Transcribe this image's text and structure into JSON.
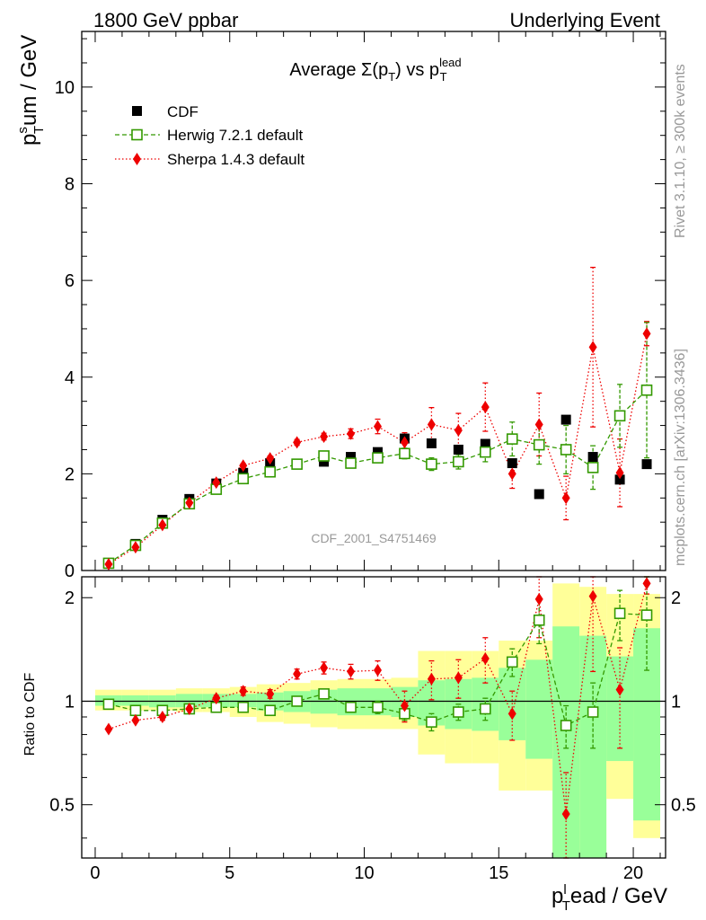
{
  "header": {
    "left": "1800 GeV ppbar",
    "right": "Underlying Event"
  },
  "side_labels": {
    "rivet": "Rivet 3.1.10, ≥ 300k events",
    "mcplots": "mcplots.cern.ch [arXiv:1306.3436]"
  },
  "watermark": "CDF_2001_S4751469",
  "colors": {
    "cdf": "#000000",
    "herwig": "#339900",
    "sherpa": "#ee0000",
    "band_yellow": "#ffff99",
    "band_green": "#99ff99"
  },
  "chart_data": [
    {
      "type": "scatter",
      "title_parts": {
        "base": "Average Σ(p",
        "sub1": "T",
        "mid": ") vs p",
        "sup": "lead",
        "sub2": "T"
      },
      "ylabel_parts": {
        "p": "p",
        "sup": "s",
        "sub": "T",
        "rest": "um / GeV"
      },
      "xlim": [
        -0.5,
        21.2
      ],
      "ylim": [
        0,
        11.15
      ],
      "yticks": [
        0,
        2,
        4,
        6,
        8,
        10
      ],
      "ytick_labels": [
        "0",
        "2",
        "4",
        "6",
        "8",
        "10"
      ],
      "legend_position": "top-left",
      "x": [
        0.5,
        1.5,
        2.5,
        3.5,
        4.5,
        5.5,
        6.5,
        7.5,
        8.5,
        9.5,
        10.5,
        11.5,
        12.5,
        13.5,
        14.5,
        15.5,
        16.5,
        17.5,
        18.5,
        19.5,
        20.5
      ],
      "series": [
        {
          "name": "CDF",
          "marker": "square-filled",
          "values": [
            0.15,
            0.55,
            1.05,
            1.48,
            1.8,
            2.02,
            2.22,
            2.2,
            2.25,
            2.35,
            2.45,
            2.73,
            2.63,
            2.5,
            2.62,
            2.22,
            1.58,
            3.12,
            2.35,
            1.88,
            2.2
          ]
        },
        {
          "name": "Herwig 7.2.1 default",
          "marker": "square-open",
          "values": [
            0.15,
            0.52,
            0.98,
            1.38,
            1.68,
            1.9,
            2.04,
            2.2,
            2.37,
            2.22,
            2.33,
            2.42,
            2.2,
            2.25,
            2.45,
            2.72,
            2.6,
            2.5,
            2.13,
            3.2,
            3.73
          ],
          "errors": [
            0.01,
            0.01,
            0.02,
            0.02,
            0.02,
            0.03,
            0.04,
            0.05,
            0.06,
            0.07,
            0.09,
            0.11,
            0.13,
            0.15,
            0.2,
            0.35,
            0.4,
            0.5,
            0.45,
            0.65,
            1.4
          ]
        },
        {
          "name": "Sherpa 1.4.3 default",
          "marker": "diamond-filled",
          "values": [
            0.13,
            0.48,
            0.94,
            1.4,
            1.82,
            2.17,
            2.32,
            2.65,
            2.77,
            2.83,
            2.98,
            2.65,
            3.02,
            2.9,
            3.38,
            2.0,
            3.02,
            1.5,
            4.62,
            2.02,
            4.9
          ],
          "errors": [
            0.01,
            0.01,
            0.02,
            0.02,
            0.03,
            0.04,
            0.05,
            0.06,
            0.07,
            0.1,
            0.15,
            0.2,
            0.35,
            0.35,
            0.5,
            0.3,
            0.65,
            0.45,
            1.65,
            0.7,
            0.25
          ]
        }
      ]
    },
    {
      "type": "scatter",
      "ylabel": "Ratio to CDF",
      "xlabel_parts": {
        "p": "p",
        "sup": "l",
        "sub": "T",
        "rest": "ead / GeV"
      },
      "xlim": [
        -0.5,
        21.2
      ],
      "ylim": [
        0.35,
        2.3
      ],
      "xticks": [
        0,
        5,
        10,
        15,
        20
      ],
      "xtick_labels": [
        "0",
        "5",
        "10",
        "15",
        "20"
      ],
      "yticks": [
        0.5,
        1,
        2
      ],
      "ytick_labels": [
        "0.5",
        "1",
        "2"
      ],
      "reference_line": 1,
      "band_edges": [
        0,
        1,
        2,
        3,
        4,
        5,
        6,
        7,
        8,
        9,
        10,
        11,
        12,
        13,
        14,
        15,
        16,
        17,
        18,
        19,
        20,
        21
      ],
      "band_yellow": [
        [
          0.94,
          1.08
        ],
        [
          0.94,
          1.08
        ],
        [
          0.94,
          1.08
        ],
        [
          0.93,
          1.09
        ],
        [
          0.93,
          1.09
        ],
        [
          0.9,
          1.1
        ],
        [
          0.87,
          1.12
        ],
        [
          0.86,
          1.13
        ],
        [
          0.84,
          1.15
        ],
        [
          0.83,
          1.16
        ],
        [
          0.83,
          1.16
        ],
        [
          0.83,
          1.17
        ],
        [
          0.7,
          1.4
        ],
        [
          0.66,
          1.4
        ],
        [
          0.66,
          1.4
        ],
        [
          0.55,
          1.5
        ],
        [
          0.55,
          1.5
        ],
        [
          0.35,
          2.2
        ],
        [
          0.35,
          2.15
        ],
        [
          0.52,
          2.05
        ],
        [
          0.4,
          2.05
        ]
      ],
      "band_green": [
        [
          0.97,
          1.04
        ],
        [
          0.97,
          1.04
        ],
        [
          0.96,
          1.04
        ],
        [
          0.96,
          1.05
        ],
        [
          0.96,
          1.05
        ],
        [
          0.96,
          1.05
        ],
        [
          0.94,
          1.06
        ],
        [
          0.93,
          1.07
        ],
        [
          0.92,
          1.08
        ],
        [
          0.91,
          1.09
        ],
        [
          0.91,
          1.09
        ],
        [
          0.9,
          1.1
        ],
        [
          0.85,
          1.15
        ],
        [
          0.83,
          1.16
        ],
        [
          0.82,
          1.17
        ],
        [
          0.77,
          1.25
        ],
        [
          0.68,
          1.32
        ],
        [
          0.35,
          1.65
        ],
        [
          0.35,
          1.55
        ],
        [
          0.67,
          1.35
        ],
        [
          0.45,
          1.63
        ]
      ],
      "series": [
        {
          "name": "Herwig 7.2.1 default",
          "values": [
            0.98,
            0.94,
            0.94,
            0.95,
            0.96,
            0.96,
            0.94,
            1.0,
            1.05,
            0.96,
            0.96,
            0.92,
            0.87,
            0.93,
            0.95,
            1.3,
            1.72,
            0.85,
            0.93,
            1.8,
            1.78
          ],
          "errors": [
            0.01,
            0.01,
            0.01,
            0.01,
            0.01,
            0.02,
            0.02,
            0.02,
            0.03,
            0.03,
            0.04,
            0.04,
            0.05,
            0.05,
            0.07,
            0.12,
            0.25,
            0.12,
            0.2,
            0.3,
            0.55
          ]
        },
        {
          "name": "Sherpa 1.4.3 default",
          "values": [
            0.83,
            0.88,
            0.9,
            0.95,
            1.02,
            1.07,
            1.05,
            1.2,
            1.25,
            1.22,
            1.23,
            0.97,
            1.16,
            1.17,
            1.33,
            0.92,
            1.98,
            0.47,
            2.02,
            1.08,
            2.2
          ],
          "errors": [
            0.01,
            0.01,
            0.02,
            0.02,
            0.02,
            0.03,
            0.03,
            0.04,
            0.05,
            0.06,
            0.08,
            0.1,
            0.15,
            0.15,
            0.2,
            0.15,
            0.45,
            0.15,
            0.8,
            0.35,
            0.15
          ]
        }
      ]
    }
  ]
}
